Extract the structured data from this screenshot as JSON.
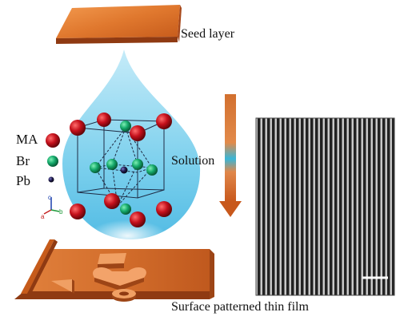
{
  "labels": {
    "seed_layer": "Seed layer",
    "solution": "Solution",
    "thin_film": "Surface patterned thin film"
  },
  "legend": [
    {
      "label": "MA",
      "color": "#c4101b"
    },
    {
      "label": "Br",
      "color": "#14a86a"
    },
    {
      "label": "Pb",
      "color": "#1e1a4a"
    }
  ],
  "axes": {
    "a": "a",
    "b": "b",
    "c": "c"
  },
  "colors": {
    "copper": "#d96a2a",
    "copper_dark": "#8f3a12",
    "droplet": "#7fd0ee",
    "arrow_top": "#d2702f",
    "arrow_mid": "#38b6d8"
  }
}
